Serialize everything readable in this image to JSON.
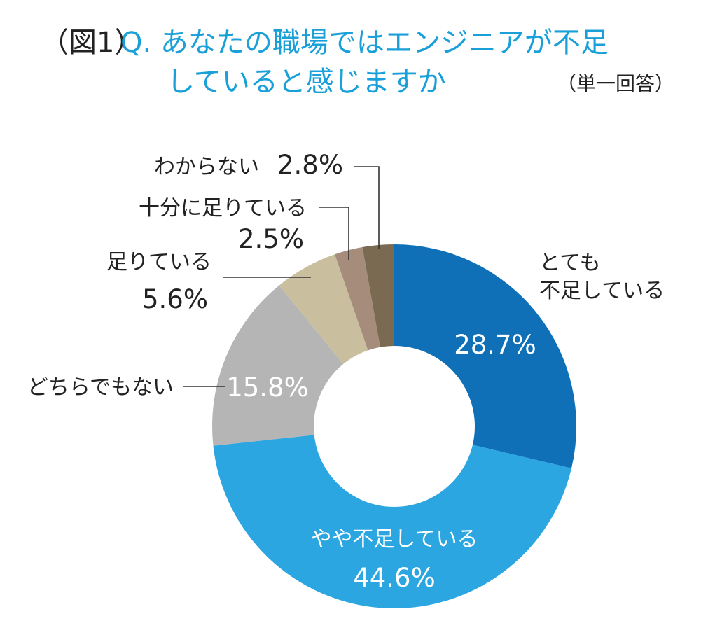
{
  "chart_data": {
    "type": "pie",
    "figure_number": "（図1）",
    "title_line1": "Q. あなたの職場ではエンジニアが不足",
    "title_line2": "していると感じますか",
    "answer_type": "（単一回答）",
    "slices": [
      {
        "label_line1": "とても",
        "label_line2": "不足している",
        "value": 28.7,
        "value_text": "28.7%",
        "color": "#0f70b8"
      },
      {
        "label_line1": "やや不足している",
        "label_line2": "",
        "value": 44.6,
        "value_text": "44.6%",
        "color": "#2ba6e0"
      },
      {
        "label_line1": "どちらでもない",
        "label_line2": "",
        "value": 15.8,
        "value_text": "15.8%",
        "color": "#b5b5b5"
      },
      {
        "label_line1": "足りている",
        "label_line2": "",
        "value": 5.6,
        "value_text": "5.6%",
        "color": "#c9bf9e"
      },
      {
        "label_line1": "十分に足りている",
        "label_line2": "",
        "value": 2.5,
        "value_text": "2.5%",
        "color": "#a58c7b"
      },
      {
        "label_line1": "わからない",
        "label_line2": "",
        "value": 2.8,
        "value_text": "2.8%",
        "color": "#7a6a52"
      }
    ]
  }
}
